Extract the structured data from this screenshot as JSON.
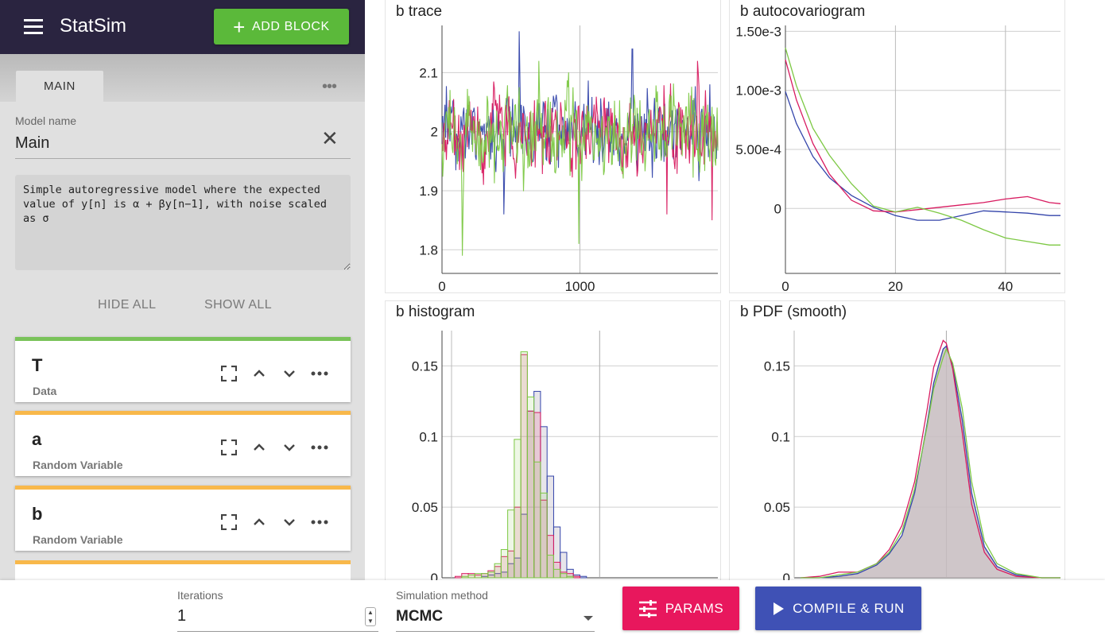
{
  "app": {
    "title": "StatSim",
    "add_block_label": "ADD BLOCK"
  },
  "tabs": [
    {
      "label": "MAIN",
      "active": true
    }
  ],
  "model": {
    "name_label": "Model name",
    "name_value": "Main",
    "description": "Simple autoregressive model where the expected value of y[n] is α + βy[n−1], with noise scaled as σ"
  },
  "visibility": {
    "hide_all": "HIDE ALL",
    "show_all": "SHOW ALL"
  },
  "blocks": [
    {
      "name": "T",
      "type": "Data",
      "accent": "#7ac35a"
    },
    {
      "name": "a",
      "type": "Random Variable",
      "accent": "#f8b84a"
    },
    {
      "name": "b",
      "type": "Random Variable",
      "accent": "#f8b84a"
    }
  ],
  "colors": {
    "chain1": "#3344aa",
    "chain2": "#d81b60",
    "chain3": "#7cc843",
    "fill": "#c7bcc0",
    "grid": "#cfcfcf"
  },
  "chart_data": [
    {
      "type": "line",
      "title": "b trace",
      "xlim": [
        0,
        2000
      ],
      "ylim": [
        1.76,
        2.18
      ],
      "xticks": [
        0,
        1000
      ],
      "xtick_labels": [
        "0",
        "1000"
      ],
      "yticks": [
        1.8,
        1.9,
        2.0,
        2.1
      ],
      "ytick_labels": [
        "1.8",
        "1.9",
        "2",
        "2.1"
      ],
      "series": [
        {
          "color": "chain1",
          "mean": 2.0,
          "sd": 0.045,
          "spikes": [
            [
              560,
              2.17
            ],
            [
              1380,
              2.14
            ],
            [
              450,
              1.86
            ]
          ],
          "seed": 3
        },
        {
          "color": "chain2",
          "mean": 2.0,
          "sd": 0.045,
          "spikes": [
            [
              1630,
              1.86
            ],
            [
              1850,
              2.12
            ],
            [
              1960,
              1.85
            ]
          ],
          "seed": 7
        },
        {
          "color": "chain3",
          "mean": 2.0,
          "sd": 0.05,
          "spikes": [
            [
              150,
              1.79
            ],
            [
              990,
              1.81
            ],
            [
              700,
              2.12
            ]
          ],
          "seed": 11
        }
      ]
    },
    {
      "type": "line",
      "title": "b autocovariogram",
      "xlim": [
        0,
        50
      ],
      "ylim": [
        -0.00055,
        0.00155
      ],
      "xticks": [
        0,
        20,
        40
      ],
      "xtick_labels": [
        "0",
        "20",
        "40"
      ],
      "yticks": [
        0,
        0.0005,
        0.001,
        0.0015
      ],
      "ytick_labels": [
        "0",
        "5.00e-4",
        "1.00e-3",
        "1.50e-3"
      ],
      "x": [
        0,
        2,
        5,
        8,
        12,
        16,
        20,
        24,
        28,
        32,
        36,
        40,
        44,
        48,
        50
      ],
      "series": [
        {
          "color": "chain1",
          "values": [
            0.00099,
            0.00072,
            0.00044,
            0.00026,
            0.00011,
            1e-05,
            -6e-05,
            -0.0001,
            -0.0001,
            -6e-05,
            -2e-05,
            -3e-05,
            -4e-05,
            -6e-05,
            -6e-05
          ]
        },
        {
          "color": "chain2",
          "values": [
            0.00126,
            0.00092,
            0.00055,
            0.00029,
            7e-05,
            -2e-05,
            -3e-05,
            -1e-05,
            1e-05,
            3e-05,
            5e-05,
            8e-05,
            0.0001,
            5e-05,
            4e-05
          ]
        },
        {
          "color": "chain3",
          "values": [
            0.00136,
            0.00104,
            0.00068,
            0.00045,
            0.00021,
            2e-05,
            -3e-05,
            1e-05,
            -4e-05,
            -0.0001,
            -0.00018,
            -0.00025,
            -0.00028,
            -0.00031,
            -0.00031
          ]
        }
      ]
    },
    {
      "type": "histogram",
      "title": "b histogram",
      "xlim": [
        1.76,
        2.18
      ],
      "ylim": [
        0,
        0.175
      ],
      "yticks": [
        0,
        0.05,
        0.1,
        0.15
      ],
      "ytick_labels": [
        "0",
        "0.05",
        "0.1",
        "0.15"
      ],
      "bin_start": 1.77,
      "bin_width": 0.01,
      "series": [
        {
          "color": "chain1",
          "values": [
            0,
            0,
            0,
            0,
            0,
            0.001,
            0.002,
            0.003,
            0.004,
            0.01,
            0.014,
            0.045,
            0.118,
            0.132,
            0.107,
            0.072,
            0.036,
            0.018,
            0.006,
            0.002,
            0.001,
            0
          ]
        },
        {
          "color": "chain2",
          "values": [
            0,
            0.001,
            0.003,
            0.003,
            0.002,
            0.003,
            0.005,
            0.008,
            0.015,
            0.019,
            0.05,
            0.158,
            0.118,
            0.117,
            0.055,
            0.03,
            0.011,
            0.004,
            0.003,
            0.001,
            0,
            0
          ]
        },
        {
          "color": "chain3",
          "values": [
            0,
            0,
            0.001,
            0.002,
            0.003,
            0.003,
            0.004,
            0.01,
            0.02,
            0.048,
            0.098,
            0.16,
            0.128,
            0.082,
            0.06,
            0.016,
            0.006,
            0.003,
            0.001,
            0,
            0,
            0
          ]
        }
      ]
    },
    {
      "type": "area",
      "title": "b PDF (smooth)",
      "xlim": [
        1.76,
        2.18
      ],
      "ylim": [
        0,
        0.175
      ],
      "yticks": [
        0,
        0.05,
        0.1,
        0.15
      ],
      "ytick_labels": [
        "0",
        "0.05",
        "0.1",
        "0.15"
      ],
      "x": [
        1.77,
        1.8,
        1.83,
        1.86,
        1.89,
        1.91,
        1.93,
        1.95,
        1.97,
        1.98,
        1.995,
        2.0,
        2.01,
        2.025,
        2.04,
        2.06,
        2.08,
        2.11,
        2.15,
        2.18
      ],
      "series": [
        {
          "color": "chain1",
          "values": [
            0,
            0,
            0.001,
            0.003,
            0.009,
            0.017,
            0.03,
            0.06,
            0.11,
            0.138,
            0.162,
            0.164,
            0.15,
            0.112,
            0.06,
            0.022,
            0.008,
            0.002,
            0,
            0
          ]
        },
        {
          "color": "chain2",
          "values": [
            0,
            0.001,
            0.004,
            0.004,
            0.01,
            0.02,
            0.037,
            0.068,
            0.12,
            0.149,
            0.168,
            0.166,
            0.148,
            0.103,
            0.052,
            0.018,
            0.006,
            0.001,
            0,
            0
          ]
        },
        {
          "color": "chain3",
          "values": [
            0,
            0,
            0.002,
            0.004,
            0.01,
            0.018,
            0.033,
            0.063,
            0.108,
            0.134,
            0.156,
            0.162,
            0.152,
            0.12,
            0.068,
            0.026,
            0.01,
            0.003,
            0,
            0
          ]
        }
      ]
    }
  ],
  "bottom": {
    "iterations_label": "Iterations",
    "iterations_value": "1",
    "method_label": "Simulation method",
    "method_value": "MCMC",
    "params_label": "PARAMS",
    "run_label": "COMPILE & RUN"
  }
}
